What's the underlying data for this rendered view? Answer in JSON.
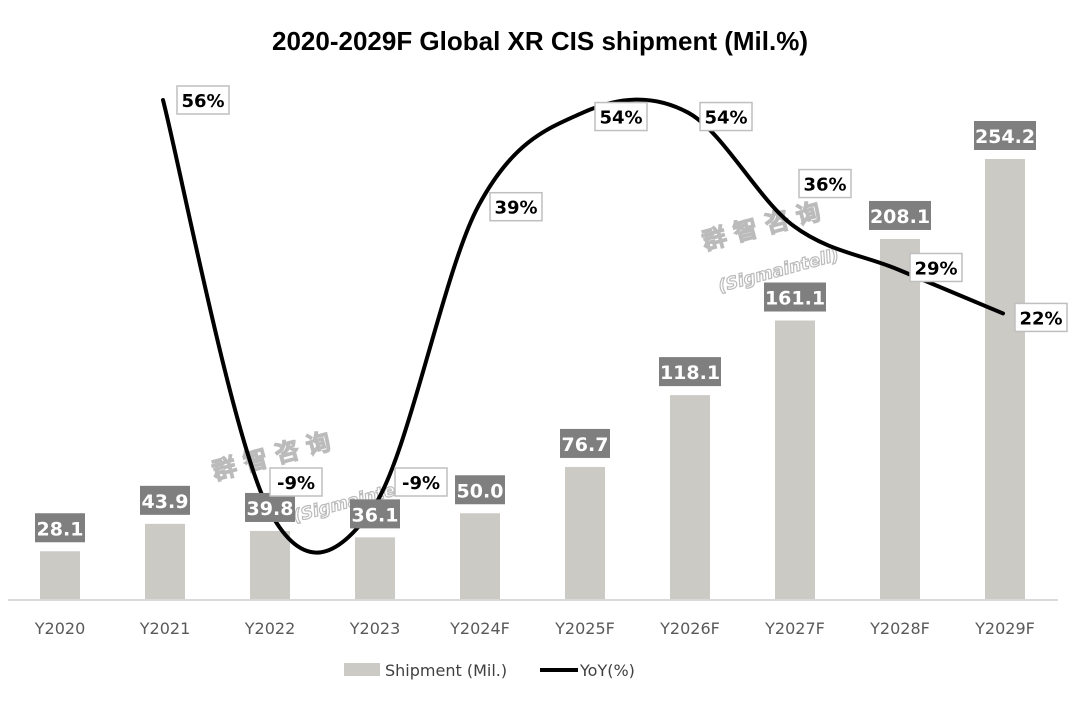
{
  "chart_data": {
    "type": "bar",
    "title": "2020-2029F Global XR CIS shipment (Mil.%)",
    "categories": [
      "Y2020",
      "Y2021",
      "Y2022",
      "Y2023",
      "Y2024F",
      "Y2025F",
      "Y2026F",
      "Y2027F",
      "Y2028F",
      "Y2029F"
    ],
    "series": [
      {
        "name": "Shipment (Mil.)",
        "kind": "bar",
        "color": "#CBCAC5",
        "label_bg": "#7F7F7F",
        "values": [
          28.1,
          43.9,
          39.8,
          36.1,
          50.0,
          76.7,
          118.1,
          161.1,
          208.1,
          254.2
        ],
        "labels": [
          "28.1",
          "43.9",
          "39.8",
          "36.1",
          "50.0",
          "76.7",
          "118.1",
          "161.1",
          "208.1",
          "254.2"
        ]
      },
      {
        "name": "YoY(%)",
        "kind": "line",
        "color": "#000000",
        "values": [
          null,
          56,
          -9,
          -9,
          39,
          54,
          54,
          36,
          29,
          22
        ],
        "labels": [
          null,
          "56%",
          "-9%",
          "-9%",
          "39%",
          "54%",
          "54%",
          "36%",
          "29%",
          "22%"
        ]
      }
    ],
    "xlabel": "",
    "ylabel": "",
    "ylim": [
      0,
      260
    ],
    "y2lim": [
      -9,
      56
    ],
    "grid": false,
    "legend": "bottom-center",
    "watermarks": [
      "群 智 咨 询",
      "(Sigmaintell)"
    ]
  }
}
